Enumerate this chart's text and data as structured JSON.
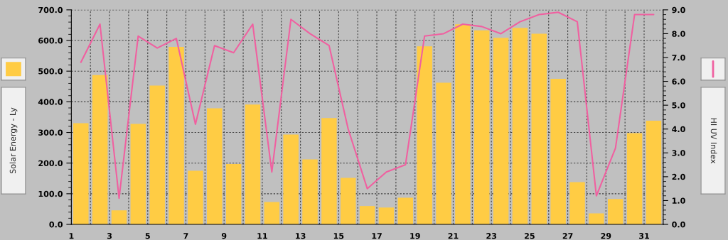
{
  "chart_data": {
    "type": "bar",
    "x": [
      1.5,
      2.5,
      3.5,
      4.5,
      5.5,
      6.5,
      7.5,
      8.5,
      9.5,
      10.5,
      11.5,
      12.5,
      13.5,
      14.5,
      15.5,
      16.5,
      17.5,
      18.5,
      19.5,
      20.5,
      21.5,
      22.5,
      23.5,
      24.5,
      25.5,
      26.5,
      27.5,
      28.5,
      29.5,
      30.5,
      31.5
    ],
    "series": [
      {
        "color": "#ffcc44",
        "values": [
          330,
          487,
          46,
          328,
          453,
          579,
          175,
          379,
          197,
          391,
          73,
          293,
          212,
          347,
          152,
          60,
          55,
          87,
          581,
          462,
          653,
          633,
          609,
          641,
          622,
          475,
          138,
          36,
          83,
          298,
          338
        ]
      },
      {
        "type": "line",
        "axis": "y2",
        "color": "#f060a0",
        "values": [
          6.8,
          8.4,
          1.1,
          7.9,
          7.4,
          7.8,
          4.2,
          7.5,
          7.2,
          8.4,
          2.2,
          8.6,
          8.0,
          7.5,
          4.0,
          1.5,
          2.2,
          2.5,
          7.9,
          8.0,
          8.4,
          8.3,
          8.0,
          8.5,
          8.8,
          8.9,
          8.5,
          1.2,
          3.2,
          8.8,
          8.8
        ]
      }
    ],
    "xlim": [
      1,
      32
    ],
    "xticks": [
      1,
      {
        "value": 2,
        "label": null
      },
      3,
      {
        "value": 4,
        "label": null
      },
      5,
      {
        "value": 6,
        "label": null
      },
      7,
      {
        "value": 8,
        "label": null
      },
      9,
      {
        "value": 10,
        "label": null
      },
      11,
      {
        "value": 12,
        "label": null
      },
      13,
      {
        "value": 14,
        "label": null
      },
      15,
      {
        "value": 16,
        "label": null
      },
      17,
      {
        "value": 18,
        "label": null
      },
      19,
      {
        "value": 20,
        "label": null
      },
      21,
      {
        "value": 22,
        "label": null
      },
      23,
      {
        "value": 24,
        "label": null
      },
      25,
      {
        "value": 26,
        "label": null
      },
      27,
      {
        "value": 28,
        "label": null
      },
      29,
      {
        "value": 30,
        "label": null
      },
      31,
      {
        "value": 32,
        "label": null
      }
    ],
    "ylim": [
      0,
      700
    ],
    "yticks": [
      {
        "value": 0,
        "label": "0.0"
      },
      {
        "value": 100,
        "label": "100.0"
      },
      {
        "value": 200,
        "label": "200.0"
      },
      {
        "value": 300,
        "label": "300.0"
      },
      {
        "value": 400,
        "label": "400.0"
      },
      {
        "value": 500,
        "label": "500.0"
      },
      {
        "value": 600,
        "label": "600.0"
      },
      {
        "value": 700,
        "label": "700.0"
      }
    ],
    "y2lim": [
      0,
      9
    ],
    "y2ticks": [
      {
        "value": 0,
        "label": "0.0"
      },
      {
        "value": 1,
        "label": "1.0"
      },
      {
        "value": 2,
        "label": "2.0"
      },
      {
        "value": 3,
        "label": "3.0"
      },
      {
        "value": 4,
        "label": "4.0"
      },
      {
        "value": 5,
        "label": "5.0"
      },
      {
        "value": 6,
        "label": "6.0"
      },
      {
        "value": 7,
        "label": "7.0"
      },
      {
        "value": 8,
        "label": "8.0"
      },
      {
        "value": 9,
        "label": "9.0"
      }
    ],
    "ylabel": "Solar Energy - Ly",
    "y2label": "HI UV Index",
    "grid": true
  }
}
